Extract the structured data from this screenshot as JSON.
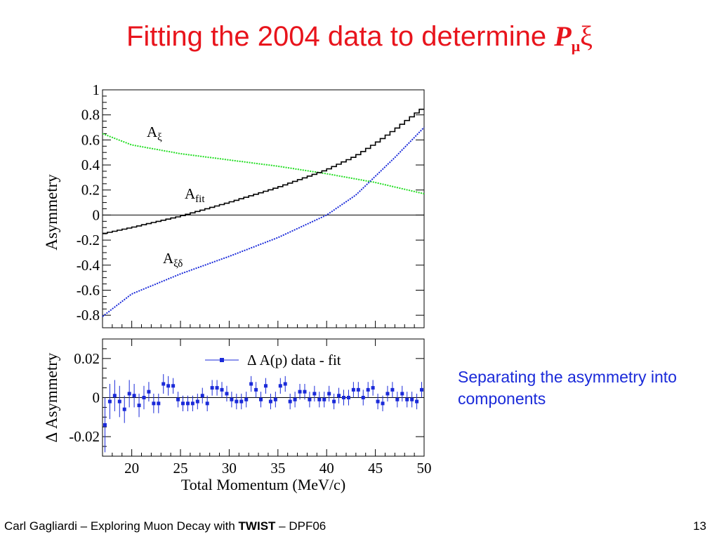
{
  "slide": {
    "title_prefix": "Fitting the 2004 data to determine ",
    "title_symbol": "P",
    "title_subscript": "μ",
    "title_suffix": "ξ",
    "side_note": "Separating the asymmetry into components",
    "footer_prefix": "Carl Gagliardi – Exploring Muon Decay with ",
    "footer_bold": "TWIST",
    "footer_suffix": " – DPF06",
    "page_number": "13"
  },
  "colors": {
    "title": "#e8141c",
    "side_note": "#1a2ad9",
    "A_xi": "#22dd22",
    "A_fit": "#000000",
    "A_xi_delta": "#1a2ad9",
    "residual_points": "#1a2ad9"
  },
  "chart_data": [
    {
      "type": "line",
      "ylabel": "Asymmetry",
      "xlim": [
        17,
        50
      ],
      "ylim": [
        -0.9,
        1
      ],
      "yticks": [
        "1",
        "0.8",
        "0.6",
        "0.4",
        "0.2",
        "0",
        "-0.2",
        "-0.4",
        "-0.6",
        "-0.8"
      ],
      "ytick_values": [
        1,
        0.8,
        0.6,
        0.4,
        0.2,
        0,
        -0.2,
        -0.4,
        -0.6,
        -0.8
      ],
      "zero_line": true,
      "series": [
        {
          "name": "A",
          "sub": "ξ",
          "style": "dashed",
          "color": "#22dd22",
          "x": [
            17,
            20,
            25,
            30,
            35,
            40,
            45,
            50
          ],
          "y": [
            0.65,
            0.56,
            0.49,
            0.44,
            0.39,
            0.33,
            0.26,
            0.17
          ]
        },
        {
          "name": "A",
          "sub": "fit",
          "style": "step",
          "color": "#000000",
          "x": [
            17,
            20,
            25,
            30,
            35,
            40,
            43,
            45,
            47,
            50
          ],
          "y": [
            -0.15,
            -0.1,
            -0.01,
            0.1,
            0.22,
            0.36,
            0.47,
            0.57,
            0.68,
            0.86
          ]
        },
        {
          "name": "A",
          "sub": "ξδ",
          "style": "dashed",
          "color": "#1a2ad9",
          "x": [
            17,
            20,
            25,
            30,
            35,
            40,
            43,
            45,
            47,
            50
          ],
          "y": [
            -0.81,
            -0.63,
            -0.47,
            -0.33,
            -0.18,
            0.0,
            0.16,
            0.31,
            0.46,
            0.7
          ]
        }
      ]
    },
    {
      "type": "scatter",
      "ylabel": "Δ Asymmetry",
      "xlabel": "Total Momentum (MeV/c)",
      "xlim": [
        17,
        50
      ],
      "ylim": [
        -0.03,
        0.03
      ],
      "xticks": [
        "20",
        "25",
        "30",
        "35",
        "40",
        "45",
        "50"
      ],
      "xtick_values": [
        20,
        25,
        30,
        35,
        40,
        45,
        50
      ],
      "yticks": [
        "0.02",
        "0",
        "-0.02"
      ],
      "ytick_values": [
        0.02,
        0,
        -0.02
      ],
      "legend": "Δ A(p) data - fit",
      "legend_position": "top-right",
      "series": [
        {
          "name": "Δ A(p) data - fit",
          "x": [
            17.25,
            17.75,
            18.25,
            18.75,
            19.25,
            19.75,
            20.25,
            20.75,
            21.25,
            21.75,
            22.25,
            22.75,
            23.25,
            23.75,
            24.25,
            24.75,
            25.25,
            25.75,
            26.25,
            26.75,
            27.25,
            27.75,
            28.25,
            28.75,
            29.25,
            29.75,
            30.25,
            30.75,
            31.25,
            31.75,
            32.25,
            32.75,
            33.25,
            33.75,
            34.25,
            34.75,
            35.25,
            35.75,
            36.25,
            36.75,
            37.25,
            37.75,
            38.25,
            38.75,
            39.25,
            39.75,
            40.25,
            40.75,
            41.25,
            41.75,
            42.25,
            42.75,
            43.25,
            43.75,
            44.25,
            44.75,
            45.25,
            45.75,
            46.25,
            46.75,
            47.25,
            47.75,
            48.25,
            48.75,
            49.25,
            49.75
          ],
          "y": [
            -0.014,
            -0.002,
            0.001,
            -0.002,
            -0.006,
            0.002,
            0.001,
            -0.004,
            0.0,
            0.003,
            -0.003,
            -0.003,
            0.007,
            0.006,
            0.006,
            -0.001,
            -0.003,
            -0.003,
            -0.003,
            -0.002,
            0.001,
            -0.003,
            0.005,
            0.005,
            0.004,
            0.002,
            -0.001,
            -0.002,
            -0.002,
            -0.001,
            0.007,
            0.004,
            -0.001,
            0.006,
            -0.002,
            -0.001,
            0.006,
            0.007,
            -0.002,
            -0.001,
            0.003,
            0.003,
            -0.001,
            0.002,
            -0.001,
            -0.001,
            0.002,
            -0.002,
            0.001,
            0.0,
            0.0,
            0.004,
            0.004,
            0.0,
            0.004,
            0.005,
            -0.002,
            -0.003,
            0.002,
            0.004,
            -0.001,
            0.002,
            -0.001,
            -0.001,
            -0.002,
            0.004
          ],
          "err": [
            0.014,
            0.009,
            0.008,
            0.008,
            0.007,
            0.007,
            0.006,
            0.006,
            0.006,
            0.005,
            0.005,
            0.005,
            0.005,
            0.005,
            0.004,
            0.004,
            0.004,
            0.004,
            0.004,
            0.004,
            0.004,
            0.004,
            0.004,
            0.004,
            0.004,
            0.004,
            0.004,
            0.004,
            0.004,
            0.004,
            0.004,
            0.004,
            0.004,
            0.004,
            0.004,
            0.004,
            0.004,
            0.004,
            0.004,
            0.004,
            0.004,
            0.004,
            0.004,
            0.004,
            0.004,
            0.004,
            0.004,
            0.004,
            0.004,
            0.004,
            0.004,
            0.004,
            0.004,
            0.004,
            0.004,
            0.004,
            0.004,
            0.004,
            0.004,
            0.004,
            0.004,
            0.004,
            0.004,
            0.004,
            0.004,
            0.004
          ]
        }
      ]
    }
  ]
}
